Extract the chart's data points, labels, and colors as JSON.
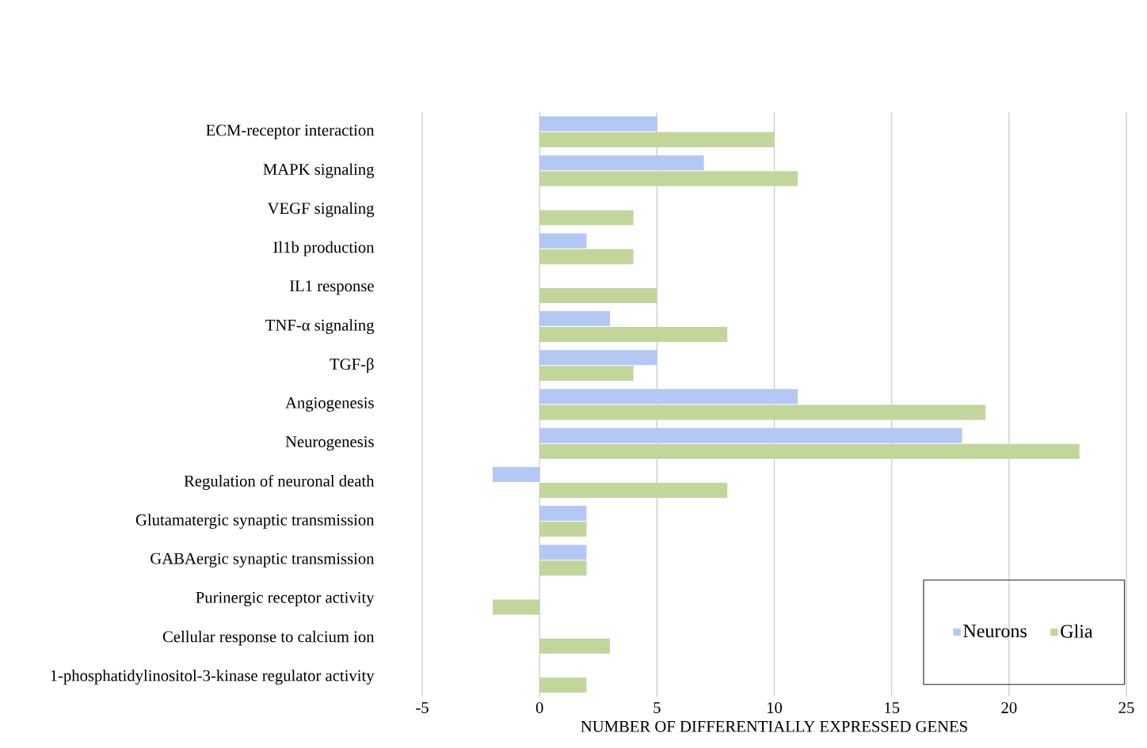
{
  "chart_data": {
    "type": "bar",
    "orientation": "horizontal",
    "categories": [
      "ECM-receptor interaction",
      "MAPK signaling",
      "VEGF signaling",
      "Il1b production",
      "IL1 response",
      "TNF-α signaling",
      "TGF-β",
      "Angiogenesis",
      "Neurogenesis",
      "Regulation of neuronal death",
      "Glutamatergic synaptic transmission",
      "GABAergic synaptic transmission",
      "Purinergic receptor activity",
      "Cellular response to calcium ion",
      "1-phosphatidylinositol-3-kinase regulator activity"
    ],
    "series": [
      {
        "name": "Neurons",
        "color": "#b4c8f5",
        "values": [
          5,
          7,
          null,
          2,
          null,
          3,
          5,
          11,
          18,
          -2,
          2,
          2,
          null,
          null,
          null
        ]
      },
      {
        "name": "Glia",
        "color": "#c2d69b",
        "values": [
          10,
          11,
          4,
          4,
          5,
          8,
          4,
          19,
          23,
          8,
          2,
          2,
          -2,
          3,
          2
        ]
      }
    ],
    "xlabel": "NUMBER OF DIFFERENTIALLY EXPRESSED GENES",
    "xlim": [
      -5,
      25
    ],
    "xticks": [
      -5,
      0,
      5,
      10,
      15,
      20,
      25
    ],
    "grid": "x",
    "legend": "bottom right"
  }
}
